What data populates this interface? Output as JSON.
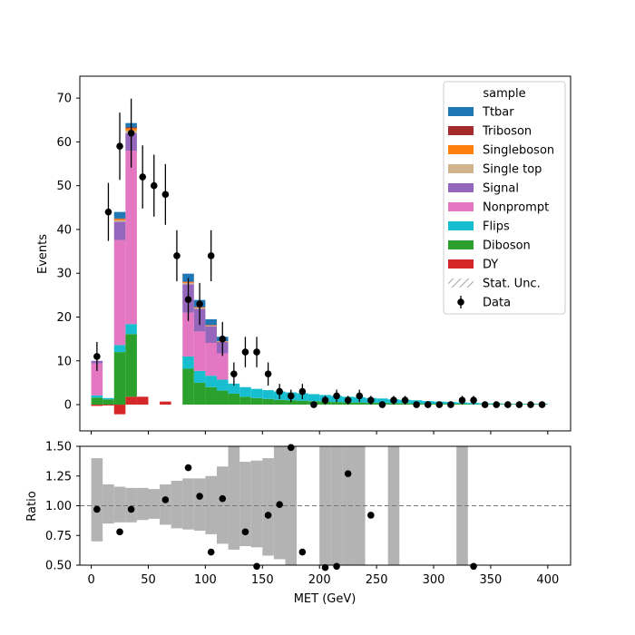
{
  "chart_data": [
    {
      "type": "stacked-step-histogram",
      "xlabel": "",
      "ylabel": "Events",
      "xlim": [
        -10,
        420
      ],
      "ylim": [
        -6,
        75
      ],
      "yticks": [
        0,
        10,
        20,
        30,
        40,
        50,
        60,
        70
      ],
      "legend": {
        "title": "sample",
        "placement": "top-right",
        "entries": [
          {
            "label": "Ttbar",
            "color": "#1f77b4"
          },
          {
            "label": "Triboson",
            "color": "#a52a2a"
          },
          {
            "label": "Singleboson",
            "color": "#ff7f0e"
          },
          {
            "label": "Single top",
            "color": "#d2b48c"
          },
          {
            "label": "Signal",
            "color": "#9467bd"
          },
          {
            "label": "Nonprompt",
            "color": "#e377c2"
          },
          {
            "label": "Flips",
            "color": "#17becf"
          },
          {
            "label": "Diboson",
            "color": "#2ca02c"
          },
          {
            "label": "DY",
            "color": "#d62728"
          },
          {
            "label": "Stat. Unc.",
            "color": "#888888"
          },
          {
            "label": "Data",
            "color": "#000000"
          }
        ]
      },
      "bin_edges": [
        0,
        10,
        20,
        30,
        40,
        50,
        60,
        70,
        80,
        90,
        100,
        110,
        120,
        130,
        140,
        150,
        160,
        170,
        180,
        190,
        200,
        210,
        220,
        230,
        240,
        250,
        260,
        270,
        280,
        290,
        300,
        310,
        320,
        330,
        340,
        350,
        360,
        370,
        380,
        390,
        400
      ],
      "stack_order": [
        "DY",
        "Diboson",
        "Flips",
        "Nonprompt",
        "Signal",
        "Single top",
        "Singleboson",
        "Triboson",
        "Ttbar"
      ],
      "series": [
        {
          "name": "DY",
          "color": "#d62728",
          "values": [
            -0.3,
            -0.2,
            -2.2,
            1.8,
            1.8,
            0,
            0.7,
            0,
            0,
            0,
            0,
            0,
            0,
            0,
            0,
            0,
            0,
            0,
            0,
            0,
            0,
            0,
            0,
            0,
            0,
            0,
            0,
            0,
            0,
            0,
            0,
            0,
            0,
            0,
            0,
            0,
            0,
            0,
            0,
            0
          ]
        },
        {
          "name": "Diboson",
          "color": "#2ca02c",
          "values": [
            1.6,
            1.2,
            12.0,
            14.3,
            0,
            0,
            0,
            0,
            8.2,
            5.0,
            4.0,
            3.2,
            2.5,
            1.8,
            1.5,
            1.3,
            1.1,
            1.0,
            0.9,
            0.8,
            0.7,
            0.6,
            0.5,
            0.5,
            0.4,
            0.4,
            0.3,
            0.3,
            0.3,
            0.2,
            0.2,
            0.2,
            0.2,
            0.1,
            0.1,
            0.1,
            0.1,
            0.1,
            0.1,
            0.1
          ]
        },
        {
          "name": "Flips",
          "color": "#17becf",
          "values": [
            0.5,
            0.3,
            1.6,
            2.3,
            0,
            0,
            0,
            0,
            2.8,
            2.7,
            2.6,
            2.5,
            2.3,
            2.2,
            2.1,
            2.0,
            1.9,
            1.8,
            1.7,
            1.6,
            1.5,
            1.4,
            1.3,
            1.2,
            1.1,
            1.0,
            0.9,
            0.8,
            0.7,
            0.6,
            0.5,
            0.4,
            0.3,
            0.3,
            0.2,
            0.2,
            0.1,
            0.1,
            0.1,
            0.1
          ]
        },
        {
          "name": "Nonprompt",
          "color": "#e377c2",
          "values": [
            7.3,
            0,
            24.0,
            39.6,
            0,
            0,
            0,
            0,
            10.0,
            9.0,
            7.5,
            6.0,
            0,
            0,
            0,
            0,
            0,
            0,
            0,
            0,
            0,
            0,
            0,
            0,
            0,
            0,
            0,
            0,
            0,
            0,
            0,
            0,
            0,
            0,
            0,
            0,
            0,
            0,
            0,
            0
          ]
        },
        {
          "name": "Signal",
          "color": "#9467bd",
          "values": [
            0.6,
            0,
            4.2,
            4.0,
            0,
            0,
            0,
            0,
            6.5,
            5.2,
            3.8,
            2.6,
            0,
            0,
            0,
            0,
            0,
            0,
            0,
            0,
            0,
            0,
            0,
            0,
            0,
            0,
            0,
            0,
            0,
            0,
            0,
            0,
            0,
            0,
            0,
            0,
            0,
            0,
            0,
            0
          ]
        },
        {
          "name": "Single top",
          "color": "#d2b48c",
          "values": [
            0,
            0,
            0.3,
            0.6,
            0,
            0,
            0,
            0,
            0.3,
            0.2,
            0.1,
            0.1,
            0,
            0,
            0,
            0,
            0,
            0,
            0,
            0,
            0,
            0,
            0,
            0,
            0,
            0,
            0,
            0,
            0,
            0,
            0,
            0,
            0,
            0,
            0,
            0,
            0,
            0,
            0,
            0
          ]
        },
        {
          "name": "Singleboson",
          "color": "#ff7f0e",
          "values": [
            0,
            0,
            0.3,
            0.5,
            0,
            0,
            0,
            0,
            0.2,
            0.1,
            0.1,
            0.1,
            0,
            0,
            0,
            0,
            0,
            0,
            0,
            0,
            0,
            0,
            0,
            0,
            0,
            0,
            0,
            0,
            0,
            0,
            0,
            0,
            0,
            0,
            0,
            0,
            0,
            0,
            0,
            0
          ]
        },
        {
          "name": "Triboson",
          "color": "#a52a2a",
          "values": [
            0,
            0,
            0.1,
            0.2,
            0,
            0,
            0,
            0,
            0.1,
            0.1,
            0.1,
            0,
            0,
            0,
            0,
            0,
            0,
            0,
            0,
            0,
            0,
            0,
            0,
            0,
            0,
            0,
            0,
            0,
            0,
            0,
            0,
            0,
            0,
            0,
            0,
            0,
            0,
            0,
            0,
            0
          ]
        },
        {
          "name": "Ttbar",
          "color": "#1f77b4",
          "values": [
            0,
            0,
            1.5,
            1.0,
            0,
            0,
            0,
            0,
            1.8,
            1.6,
            1.3,
            1.0,
            0,
            0,
            0,
            0,
            0,
            0,
            0,
            0,
            0,
            0,
            0,
            0,
            0,
            0,
            0,
            0,
            0,
            0,
            0,
            0,
            0,
            0,
            0,
            0,
            0,
            0,
            0,
            0
          ]
        }
      ],
      "data_points": {
        "name": "Data",
        "x": [
          5,
          15,
          25,
          35,
          45,
          55,
          65,
          75,
          85,
          95,
          105,
          115,
          125,
          135,
          145,
          155,
          165,
          175,
          185,
          195,
          205,
          215,
          225,
          235,
          245,
          255,
          265,
          275,
          285,
          295,
          305,
          315,
          325,
          335,
          345,
          355,
          365,
          375,
          385,
          395
        ],
        "y": [
          11,
          44,
          59,
          62,
          52,
          50,
          48,
          34,
          24,
          23,
          34,
          15,
          7,
          12,
          12,
          7,
          3,
          2,
          3,
          0,
          1,
          2,
          1,
          2,
          1,
          0,
          1,
          1,
          0,
          0,
          0,
          0,
          1,
          1,
          0,
          0,
          0,
          0,
          0,
          0
        ]
      }
    },
    {
      "type": "ratio",
      "xlabel": "MET (GeV)",
      "ylabel": "Ratio",
      "xlim": [
        -10,
        420
      ],
      "ylim": [
        0.5,
        1.5
      ],
      "xticks": [
        0,
        50,
        100,
        150,
        200,
        250,
        300,
        350,
        400
      ],
      "yticks": [
        0.5,
        0.75,
        1.0,
        1.25,
        1.5
      ],
      "ytick_labels": [
        "0.50",
        "0.75",
        "1.00",
        "1.25",
        "1.50"
      ],
      "reference_line": 1.0,
      "uncertainty_band": {
        "bin_edges": [
          0,
          10,
          20,
          30,
          40,
          50,
          60,
          70,
          80,
          90,
          100,
          110,
          120,
          130,
          140,
          150,
          160,
          170,
          180,
          190,
          200,
          210,
          220,
          230,
          240,
          250,
          260,
          270,
          280,
          290,
          300,
          310,
          320,
          330,
          340,
          350,
          360,
          370,
          380,
          390,
          400
        ],
        "lower": [
          0.7,
          0.85,
          0.86,
          0.86,
          0.88,
          0.89,
          0.84,
          0.81,
          0.8,
          0.79,
          0.76,
          0.68,
          0.63,
          0.66,
          0.65,
          0.58,
          0.55,
          0,
          null,
          null,
          0,
          0,
          0,
          0,
          null,
          null,
          0,
          null,
          null,
          null,
          null,
          null,
          0,
          null,
          null,
          null,
          null,
          null,
          null,
          null
        ],
        "upper": [
          1.4,
          1.18,
          1.16,
          1.15,
          1.15,
          1.14,
          1.18,
          1.21,
          1.23,
          1.23,
          1.25,
          1.33,
          1.5,
          1.37,
          1.38,
          1.4,
          1.5,
          2.0,
          null,
          null,
          2.0,
          2.0,
          2.0,
          2.0,
          null,
          null,
          2.0,
          null,
          null,
          null,
          null,
          null,
          2.0,
          null,
          null,
          null,
          null,
          null,
          null,
          null
        ]
      },
      "points": {
        "x": [
          5,
          25,
          35,
          65,
          85,
          95,
          105,
          115,
          135,
          145,
          155,
          165,
          175,
          185,
          205,
          215,
          225,
          245,
          335
        ],
        "y": [
          0.97,
          0.78,
          0.97,
          1.05,
          1.32,
          1.08,
          0.61,
          1.06,
          0.78,
          0.49,
          0.92,
          1.01,
          1.49,
          0.61,
          0.48,
          0.49,
          1.27,
          0.92,
          0.49
        ]
      }
    }
  ]
}
